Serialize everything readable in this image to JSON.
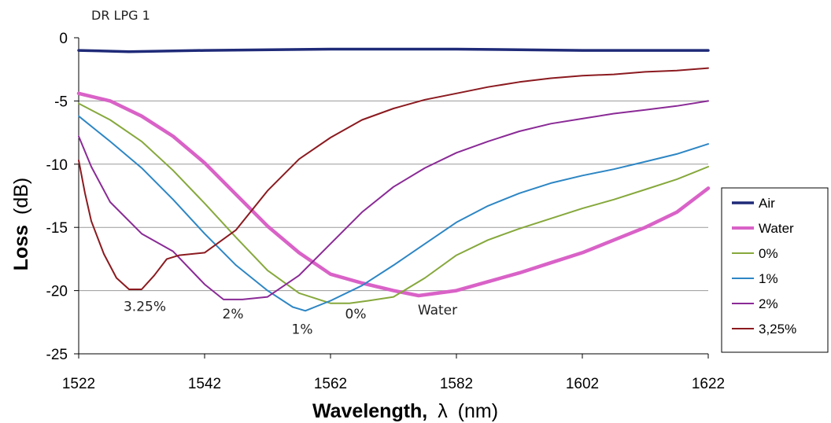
{
  "chart_data": {
    "type": "line",
    "title": "DR LPG 1",
    "xlabel_main": "Wavelength,",
    "xlabel_symbol": "λ",
    "xlabel_unit": "(nm)",
    "ylabel_main": "Loss",
    "ylabel_unit": "(dB)",
    "xlim": [
      1522,
      1622
    ],
    "ylim": [
      -25,
      0
    ],
    "xticks": [
      1522,
      1542,
      1562,
      1582,
      1602,
      1622
    ],
    "yticks": [
      0,
      -5,
      -10,
      -15,
      -20,
      -25
    ],
    "grid": "horizontal",
    "legend_position": "right",
    "series": [
      {
        "name": "Air",
        "color": "#1f2a78",
        "width": 3.5,
        "x": [
          1522,
          1530,
          1542,
          1562,
          1582,
          1602,
          1622
        ],
        "y": [
          -1.0,
          -1.1,
          -1.0,
          -0.9,
          -0.9,
          -1.0,
          -1.0
        ]
      },
      {
        "name": "Water",
        "color": "#d962c7",
        "width": 4.5,
        "x": [
          1522,
          1527,
          1532,
          1537,
          1542,
          1547,
          1552,
          1557,
          1562,
          1567,
          1572,
          1576,
          1582,
          1587,
          1592,
          1597,
          1602,
          1607,
          1612,
          1617,
          1622
        ],
        "y": [
          -4.4,
          -5.0,
          -6.2,
          -7.8,
          -9.9,
          -12.4,
          -14.9,
          -17.0,
          -18.7,
          -19.4,
          -20.0,
          -20.4,
          -20.0,
          -19.3,
          -18.6,
          -17.8,
          -17.0,
          -16.0,
          -15.0,
          -13.8,
          -11.9
        ]
      },
      {
        "name": "0%",
        "color": "#86a83c",
        "width": 2,
        "x": [
          1522,
          1527,
          1532,
          1537,
          1542,
          1547,
          1552,
          1557,
          1562,
          1565,
          1568,
          1572,
          1577,
          1582,
          1587,
          1592,
          1597,
          1602,
          1607,
          1612,
          1617,
          1622
        ],
        "y": [
          -5.2,
          -6.5,
          -8.2,
          -10.5,
          -13.1,
          -15.8,
          -18.4,
          -20.2,
          -21.0,
          -21.0,
          -20.8,
          -20.5,
          -19.0,
          -17.2,
          -16.0,
          -15.1,
          -14.3,
          -13.5,
          -12.8,
          -12.0,
          -11.2,
          -10.2
        ]
      },
      {
        "name": "1%",
        "color": "#2d86c4",
        "width": 2,
        "x": [
          1522,
          1527,
          1532,
          1537,
          1542,
          1547,
          1552,
          1556,
          1558,
          1562,
          1567,
          1572,
          1577,
          1582,
          1587,
          1592,
          1597,
          1602,
          1607,
          1612,
          1617,
          1622
        ],
        "y": [
          -6.2,
          -8.2,
          -10.3,
          -12.8,
          -15.5,
          -18.0,
          -20.0,
          -21.3,
          -21.6,
          -20.8,
          -19.6,
          -18.0,
          -16.3,
          -14.6,
          -13.3,
          -12.3,
          -11.5,
          -10.9,
          -10.4,
          -9.8,
          -9.2,
          -8.4
        ]
      },
      {
        "name": "2%",
        "color": "#8a2a96",
        "width": 2,
        "x": [
          1522,
          1524,
          1527,
          1532,
          1537,
          1542,
          1545,
          1548,
          1552,
          1557,
          1562,
          1567,
          1572,
          1577,
          1582,
          1587,
          1592,
          1597,
          1602,
          1607,
          1612,
          1617,
          1622
        ],
        "y": [
          -7.8,
          -10.2,
          -13.0,
          -15.5,
          -16.9,
          -19.5,
          -20.7,
          -20.7,
          -20.5,
          -18.8,
          -16.3,
          -13.8,
          -11.8,
          -10.3,
          -9.1,
          -8.2,
          -7.4,
          -6.8,
          -6.4,
          -6.0,
          -5.7,
          -5.4,
          -5.0
        ]
      },
      {
        "name": "3,25%",
        "color": "#8b1a1f",
        "width": 2,
        "x": [
          1522,
          1523,
          1524,
          1526,
          1528,
          1530,
          1532,
          1534,
          1536,
          1538,
          1542,
          1547,
          1552,
          1557,
          1562,
          1567,
          1572,
          1577,
          1582,
          1587,
          1592,
          1597,
          1602,
          1607,
          1612,
          1617,
          1622
        ],
        "y": [
          -9.7,
          -12.3,
          -14.5,
          -17.1,
          -19.0,
          -19.9,
          -19.9,
          -18.8,
          -17.5,
          -17.2,
          -17.0,
          -15.2,
          -12.1,
          -9.6,
          -7.9,
          -6.5,
          -5.6,
          -4.9,
          -4.4,
          -3.9,
          -3.5,
          -3.2,
          -3.0,
          -2.9,
          -2.7,
          -2.6,
          -2.4
        ]
      }
    ],
    "annotations": [
      {
        "text": "3.25%",
        "x": 1532.5,
        "y": -21.6
      },
      {
        "text": "2%",
        "x": 1546.5,
        "y": -22.2
      },
      {
        "text": "1%",
        "x": 1557.5,
        "y": -23.4
      },
      {
        "text": "0%",
        "x": 1566,
        "y": -22.2
      },
      {
        "text": "Water",
        "x": 1579,
        "y": -21.9
      }
    ]
  }
}
